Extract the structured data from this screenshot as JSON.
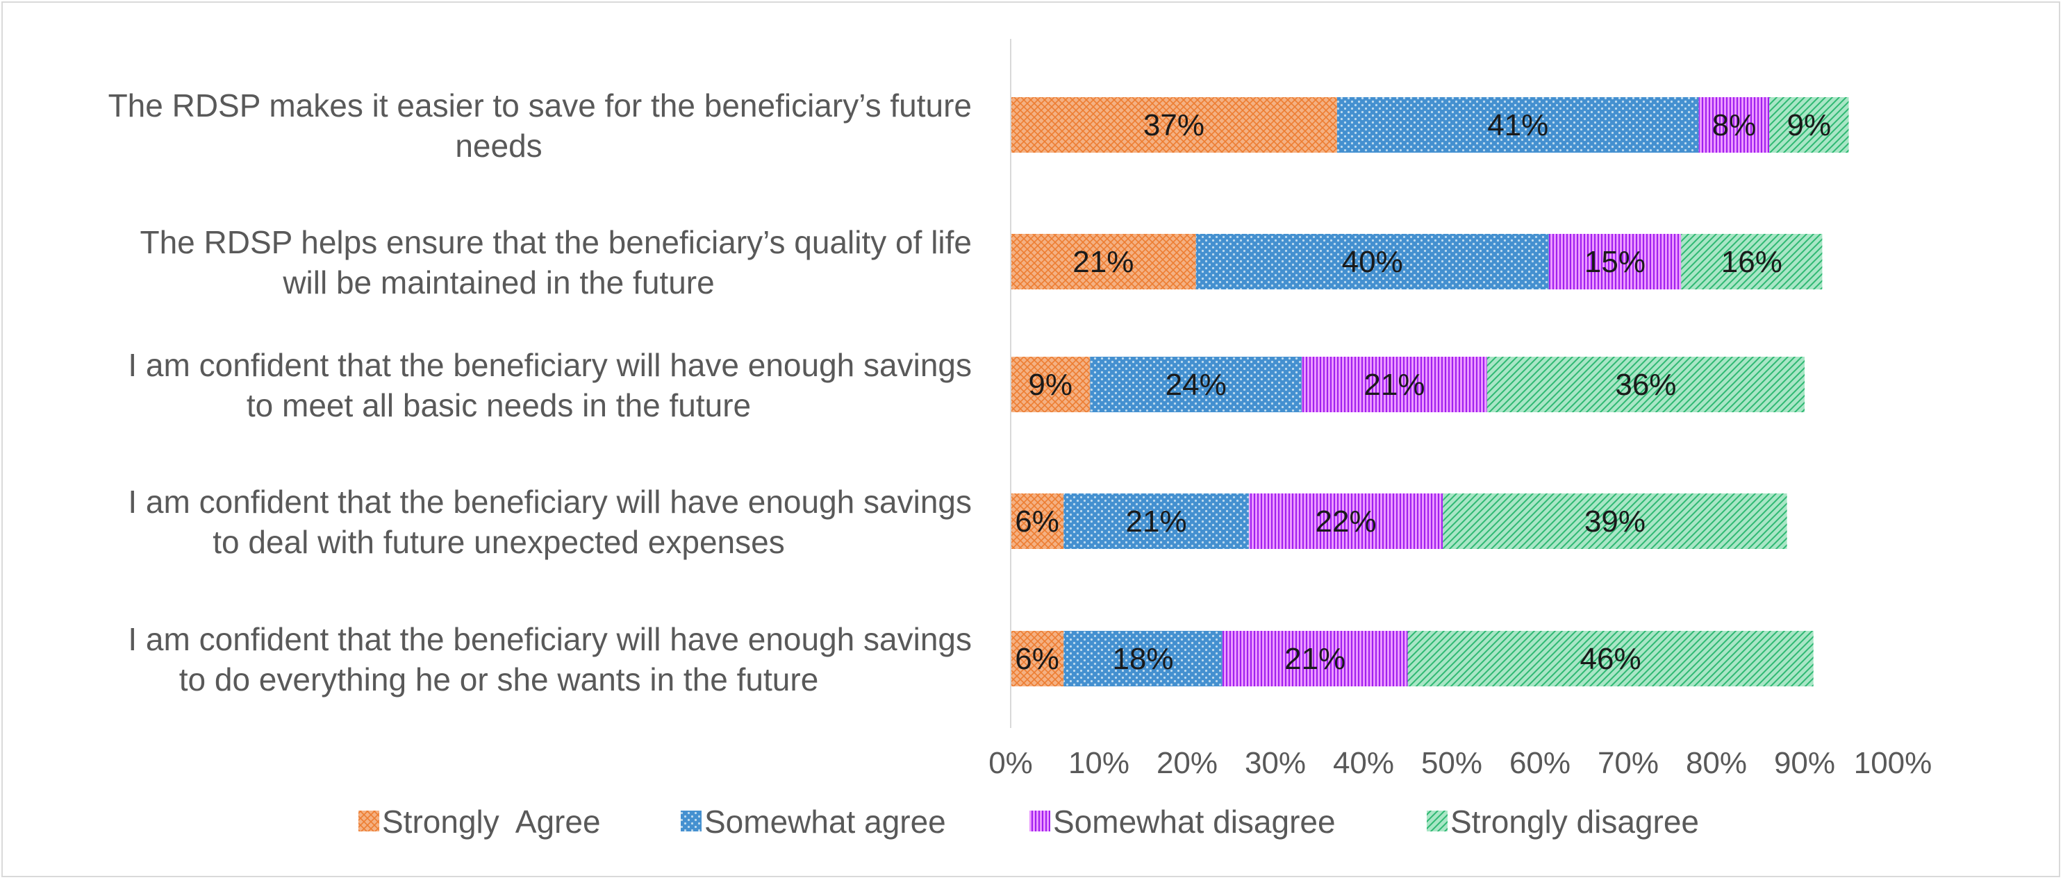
{
  "chart_data": {
    "type": "bar",
    "orientation": "horizontal",
    "stacked": true,
    "title": "",
    "xlabel": "",
    "ylabel": "",
    "xlim": [
      0,
      100
    ],
    "grid": false,
    "legend_position": "bottom",
    "categories": [
      "The RDSP makes it easier to save for the beneficiary’s future needs",
      "The RDSP helps ensure that the beneficiary’s quality of life will be maintained in the future",
      "I am confident that the beneficiary will have enough savings to meet all basic needs in the future",
      "I am confident that the beneficiary will have enough savings to deal with future unexpected expenses",
      "I am confident that the beneficiary will have enough savings to do everything he or she wants in the future"
    ],
    "category_lines": [
      [
        "The RDSP makes it easier to save for the beneficiary’s future",
        "needs"
      ],
      [
        "The RDSP helps ensure that the beneficiary’s quality of life",
        "will be maintained in the future"
      ],
      [
        "I am confident that the beneficiary will have enough savings",
        "to meet all basic needs in the future"
      ],
      [
        "I am confident that the beneficiary will have enough savings",
        "to deal with future unexpected expenses"
      ],
      [
        "I am confident that the beneficiary will have enough savings",
        "to do everything he or she wants in the future"
      ]
    ],
    "x_ticks": [
      "0%",
      "10%",
      "20%",
      "30%",
      "40%",
      "50%",
      "60%",
      "70%",
      "80%",
      "90%",
      "100%"
    ],
    "series": [
      {
        "name": "Strongly  Agree",
        "color": "#f4b183",
        "dark": "#ed7d31",
        "pattern": "crosshatch",
        "values": [
          37,
          21,
          9,
          6,
          6
        ],
        "labels": [
          "37%",
          "21%",
          "9%",
          "6%",
          "6%"
        ]
      },
      {
        "name": "Somewhat agree",
        "color": "#5b9bd5",
        "dark": "#0070c0",
        "pattern": "dots",
        "values": [
          41,
          40,
          24,
          21,
          18
        ],
        "labels": [
          "41%",
          "40%",
          "24%",
          "21%",
          "18%"
        ]
      },
      {
        "name": "Somewhat disagree",
        "color": "#f0a0ff",
        "dark": "#a020f0",
        "pattern": "vertical",
        "values": [
          8,
          15,
          21,
          22,
          21
        ],
        "labels": [
          "8%",
          "15%",
          "21%",
          "22%",
          "21%"
        ]
      },
      {
        "name": "Strongly disagree",
        "color": "#a9e6c6",
        "dark": "#2eb872",
        "pattern": "diagonal",
        "values": [
          9,
          16,
          36,
          39,
          46
        ],
        "labels": [
          "9%",
          "16%",
          "36%",
          "39%",
          "46%"
        ]
      }
    ]
  }
}
